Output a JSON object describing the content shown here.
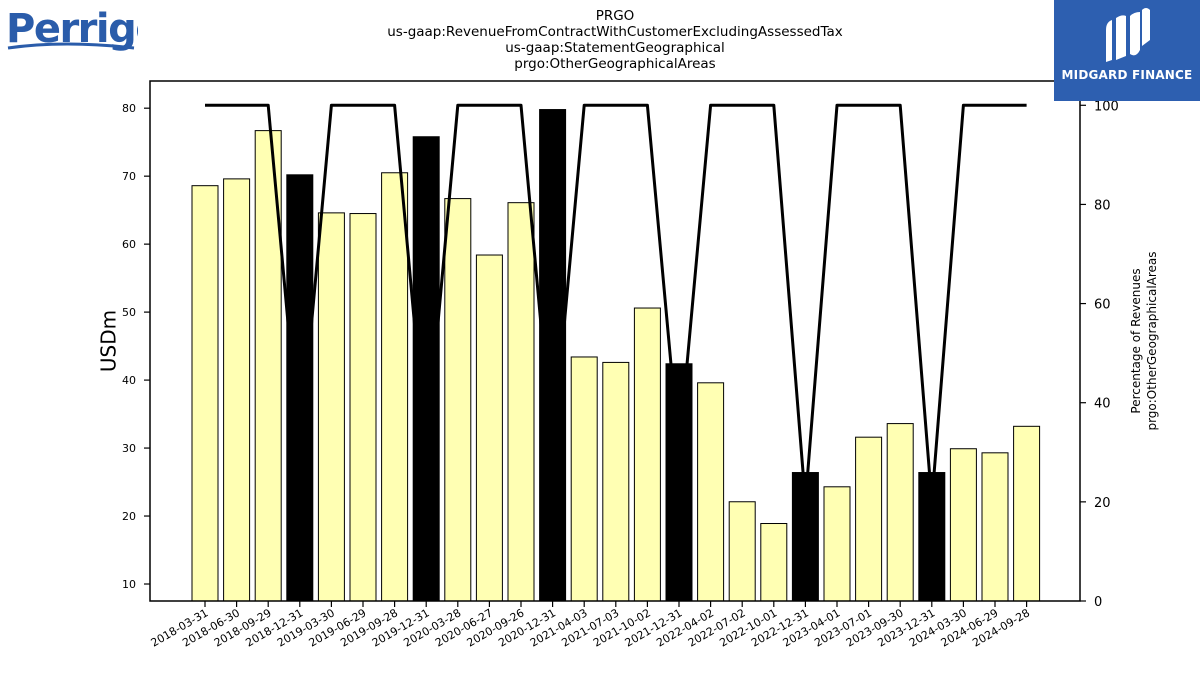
{
  "brand": {
    "left_logo_text": "Perrigo",
    "right_logo_text": "MIDGARD FINANCE",
    "left_logo_color": "#2a5caa",
    "right_logo_bg": "#2d5fb0"
  },
  "chart_data": {
    "type": "bar",
    "title_lines": [
      "PRGO",
      "us-gaap:RevenueFromContractWithCustomerExcludingAssessedTax",
      "us-gaap:StatementGeographical",
      "prgo:OtherGeographicalAreas"
    ],
    "ylabel": "USDm",
    "y2label_lines": [
      "Percentage of Revenues",
      "prgo:OtherGeographicalAreas"
    ],
    "categories": [
      "2018-03-31",
      "2018-06-30",
      "2018-09-29",
      "2018-12-31",
      "2019-03-30",
      "2019-06-29",
      "2019-09-28",
      "2019-12-31",
      "2020-03-28",
      "2020-06-27",
      "2020-09-26",
      "2020-12-31",
      "2021-04-03",
      "2021-07-03",
      "2021-10-02",
      "2021-12-31",
      "2022-04-02",
      "2022-07-02",
      "2022-10-01",
      "2022-12-31",
      "2023-04-01",
      "2023-07-01",
      "2023-09-30",
      "2023-12-31",
      "2024-03-30",
      "2024-06-29",
      "2024-09-28"
    ],
    "values": [
      68.6,
      69.6,
      76.7,
      70.2,
      64.6,
      64.5,
      70.5,
      75.8,
      66.7,
      58.4,
      66.1,
      79.8,
      43.4,
      42.6,
      50.6,
      42.4,
      39.6,
      22.1,
      18.9,
      26.4,
      24.3,
      31.6,
      33.6,
      26.4,
      29.9,
      29.3,
      33.2
    ],
    "highlight": [
      false,
      false,
      false,
      true,
      false,
      false,
      false,
      true,
      false,
      false,
      false,
      true,
      false,
      false,
      false,
      true,
      false,
      false,
      false,
      true,
      false,
      false,
      false,
      true,
      false,
      false,
      false
    ],
    "percentage": [
      100,
      100,
      100,
      30,
      100,
      100,
      100,
      30,
      100,
      100,
      100,
      30,
      100,
      100,
      100,
      30,
      100,
      100,
      100,
      20,
      100,
      100,
      100,
      20,
      100,
      100,
      100
    ],
    "ylim": [
      7.5,
      84
    ],
    "y2lim": [
      0,
      104.9
    ],
    "yticks": [
      10,
      20,
      30,
      40,
      50,
      60,
      70,
      80
    ],
    "y2ticks": [
      0,
      20,
      40,
      60,
      80,
      100
    ],
    "bar_color": "#ffffb3",
    "highlight_color": "#000000",
    "line_color": "#000000",
    "grid": false
  }
}
